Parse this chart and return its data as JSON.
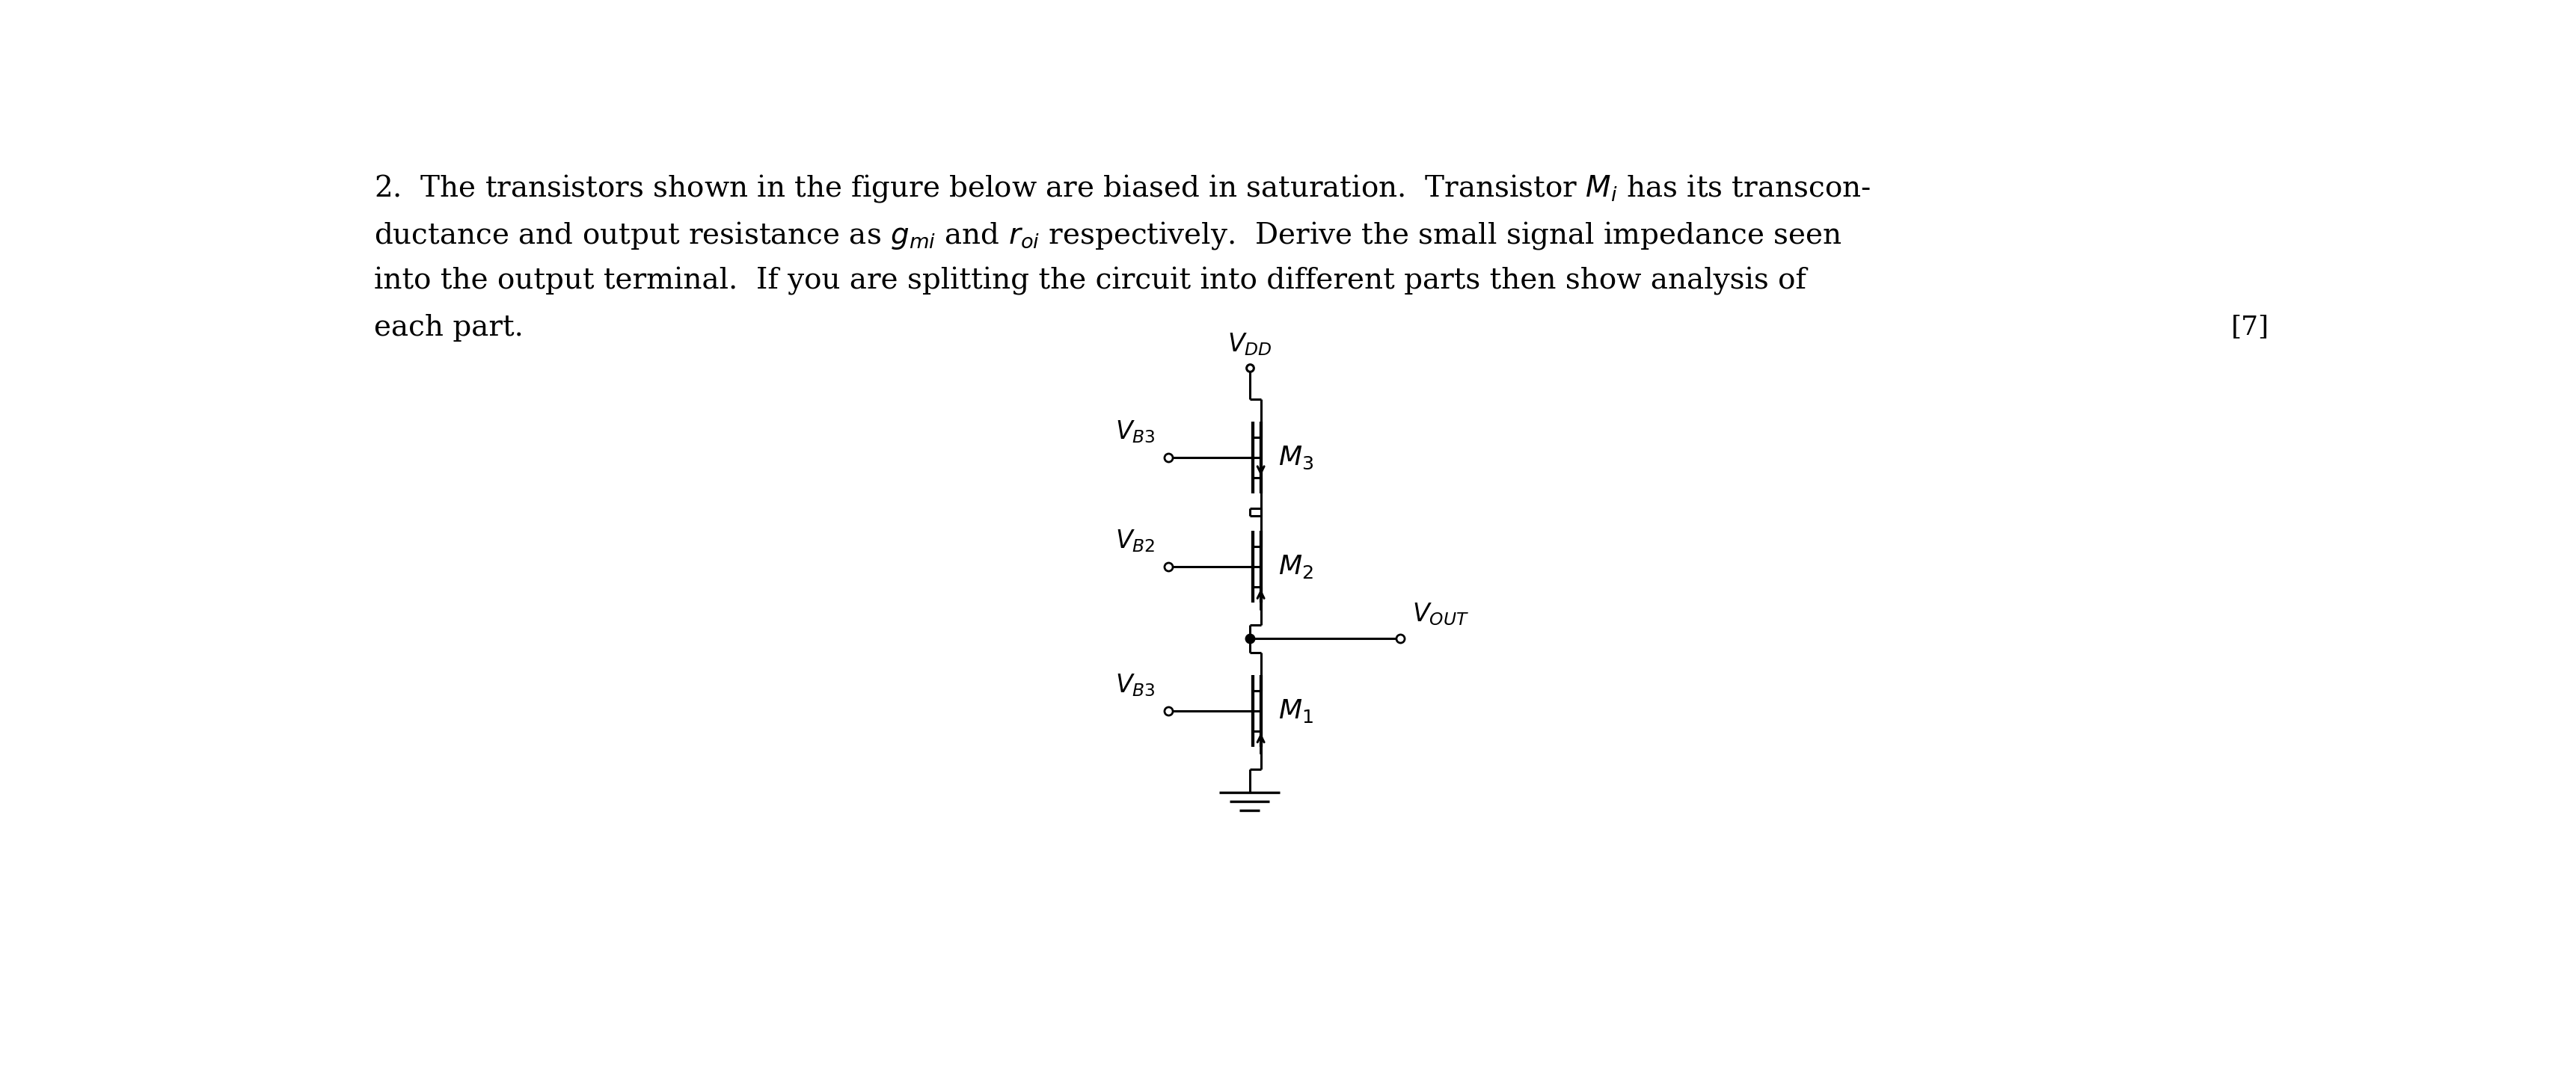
{
  "bg_color": "#ffffff",
  "text_color": "#000000",
  "line_color": "#000000",
  "fig_width": 34.44,
  "fig_height": 14.42,
  "font_size_body": 28,
  "font_size_label": 24,
  "font_size_score": 26,
  "vdd_label": "$V_{DD}$",
  "vb3_label_top": "$V_{B3}$",
  "vb2_label": "$V_{B2}$",
  "vb3_label_bot": "$V_{B3}$",
  "m3_label": "$M_3$",
  "m2_label": "$M_2$",
  "m1_label": "$M_1$",
  "vout_label": "$V_{OUT}$",
  "score_text": "[7]",
  "line1": "2.  The transistors shown in the figure below are biased in saturation.  Transistor $M_i$ has its transcon-",
  "line2": "ductance and output resistance as $g_{mi}$ and $r_{oi}$ respectively.  Derive the small signal impedance seen",
  "line3": "into the output terminal.  If you are splitting the circuit into different parts then show analysis of",
  "line4": "each part."
}
